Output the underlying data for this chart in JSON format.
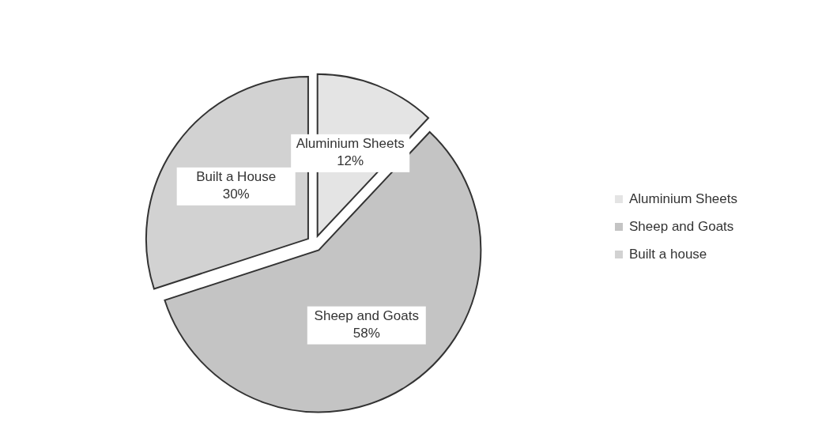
{
  "chart_data": {
    "type": "pie",
    "categories": [
      "Aluminium Sheets",
      "Sheep and Goats",
      "Built a house"
    ],
    "values": [
      12,
      58,
      30
    ],
    "colors": [
      "#e4e4e4",
      "#c4c4c4",
      "#d2d2d2"
    ],
    "value_labels": [
      "Aluminium Sheets 12%",
      "Sheep and Goats 58%",
      "Built a House 30%"
    ],
    "legend": "right"
  }
}
